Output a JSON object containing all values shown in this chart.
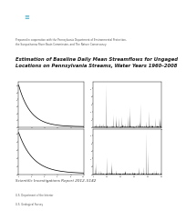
{
  "title_line1": "Estimation of Baseline Daily Mean Streamflows for Ungaged",
  "title_line2": "Locations on Pennsylvania Streams, Water Years 1960–2008",
  "subtitle": "Prepared in cooperation with the Pennsylvania Department of Environmental Protection,\nthe Susquehanna River Basin Commission, and The Nature Conservancy",
  "report_label": "Scientific Investigations Report 2012–5142",
  "dept_line1": "U.S. Department of the Interior",
  "dept_line2": "U.S. Geological Survey",
  "usgs_banner_color": "#4BACC6",
  "background_color": "#FFFFFF",
  "chart_bg": "#FFFFFF",
  "title_color": "#1a1a1a",
  "subtitle_color": "#555555",
  "report_color": "#444444",
  "dept_color": "#555555"
}
